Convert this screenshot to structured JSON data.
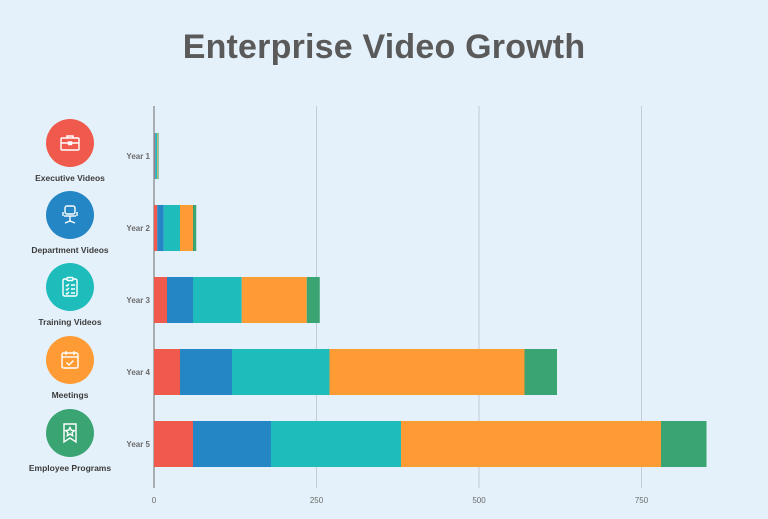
{
  "title": "Enterprise Video Growth",
  "legend": [
    {
      "label": "Executive Videos",
      "color": "#ef5a4c",
      "icon": "briefcase-icon"
    },
    {
      "label": "Department Videos",
      "color": "#2486c4",
      "icon": "office-chair-icon"
    },
    {
      "label": "Training Videos",
      "color": "#1fbcbc",
      "icon": "clipboard-checklist-icon"
    },
    {
      "label": "Meetings",
      "color": "#fe9b34",
      "icon": "calendar-check-icon"
    },
    {
      "label": "Employee Programs",
      "color": "#3aa472",
      "icon": "award-ribbon-star-icon"
    }
  ],
  "chart_data": {
    "type": "bar",
    "orientation": "horizontal",
    "stacked": true,
    "title": "Enterprise Video Growth",
    "categories": [
      "Year 1",
      "Year 2",
      "Year 3",
      "Year 4",
      "Year 5"
    ],
    "series": [
      {
        "name": "Executive Videos",
        "color": "#ef5a4c",
        "values": [
          1,
          5,
          20,
          40,
          60
        ]
      },
      {
        "name": "Department Videos",
        "color": "#2486c4",
        "values": [
          1,
          10,
          40,
          80,
          120
        ]
      },
      {
        "name": "Training Videos",
        "color": "#1fbcbc",
        "values": [
          3,
          25,
          75,
          150,
          200
        ]
      },
      {
        "name": "Meetings",
        "color": "#fe9b34",
        "values": [
          1,
          20,
          100,
          300,
          400
        ]
      },
      {
        "name": "Employee Programs",
        "color": "#3aa472",
        "values": [
          1,
          5,
          20,
          50,
          70
        ]
      }
    ],
    "xticks": [
      0,
      250,
      500,
      750
    ],
    "xlim": [
      0,
      850
    ],
    "grid": true,
    "legend_position": "left"
  }
}
